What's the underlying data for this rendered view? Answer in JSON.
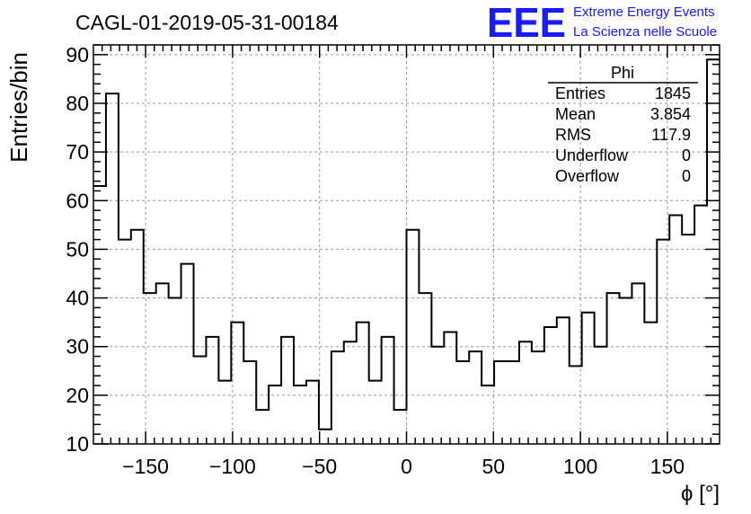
{
  "header": {
    "title": "CAGL-01-2019-05-31-00184",
    "logo_text": "EEE",
    "logo_line1": "Extreme Energy Events",
    "logo_line2": "La Scienza nelle Scuole",
    "logo_color": "#1a1aff"
  },
  "stats": {
    "name": "Phi",
    "rows": [
      {
        "label": "Entries",
        "value": "1845"
      },
      {
        "label": "Mean",
        "value": "3.854"
      },
      {
        "label": "RMS",
        "value": "117.9"
      },
      {
        "label": "Underflow",
        "value": "0"
      },
      {
        "label": "Overflow",
        "value": "0"
      }
    ]
  },
  "chart_data": {
    "type": "histogram",
    "xlabel": "ϕ [°]",
    "ylabel": "Entries/bin",
    "xlim": [
      -180,
      180
    ],
    "ylim": [
      10,
      92
    ],
    "bin_width": 7.2,
    "x_ticks": [
      -150,
      -100,
      -50,
      0,
      50,
      100,
      150
    ],
    "x_tick_labels": [
      "−150",
      "−100",
      "−50",
      "0",
      "50",
      "100",
      "150"
    ],
    "y_ticks": [
      10,
      20,
      30,
      40,
      50,
      60,
      70,
      80,
      90
    ],
    "y_tick_labels": [
      "10",
      "20",
      "30",
      "40",
      "50",
      "60",
      "70",
      "80",
      "90"
    ],
    "grid": true,
    "values": [
      63,
      82,
      52,
      54,
      41,
      43,
      40,
      47,
      28,
      32,
      23,
      35,
      27,
      17,
      22,
      32,
      22,
      23,
      13,
      29,
      31,
      35,
      23,
      32,
      17,
      54,
      41,
      30,
      33,
      27,
      29,
      22,
      27,
      27,
      31,
      29,
      34,
      36,
      26,
      37,
      30,
      41,
      40,
      43,
      35,
      52,
      57,
      53,
      59,
      89
    ]
  }
}
